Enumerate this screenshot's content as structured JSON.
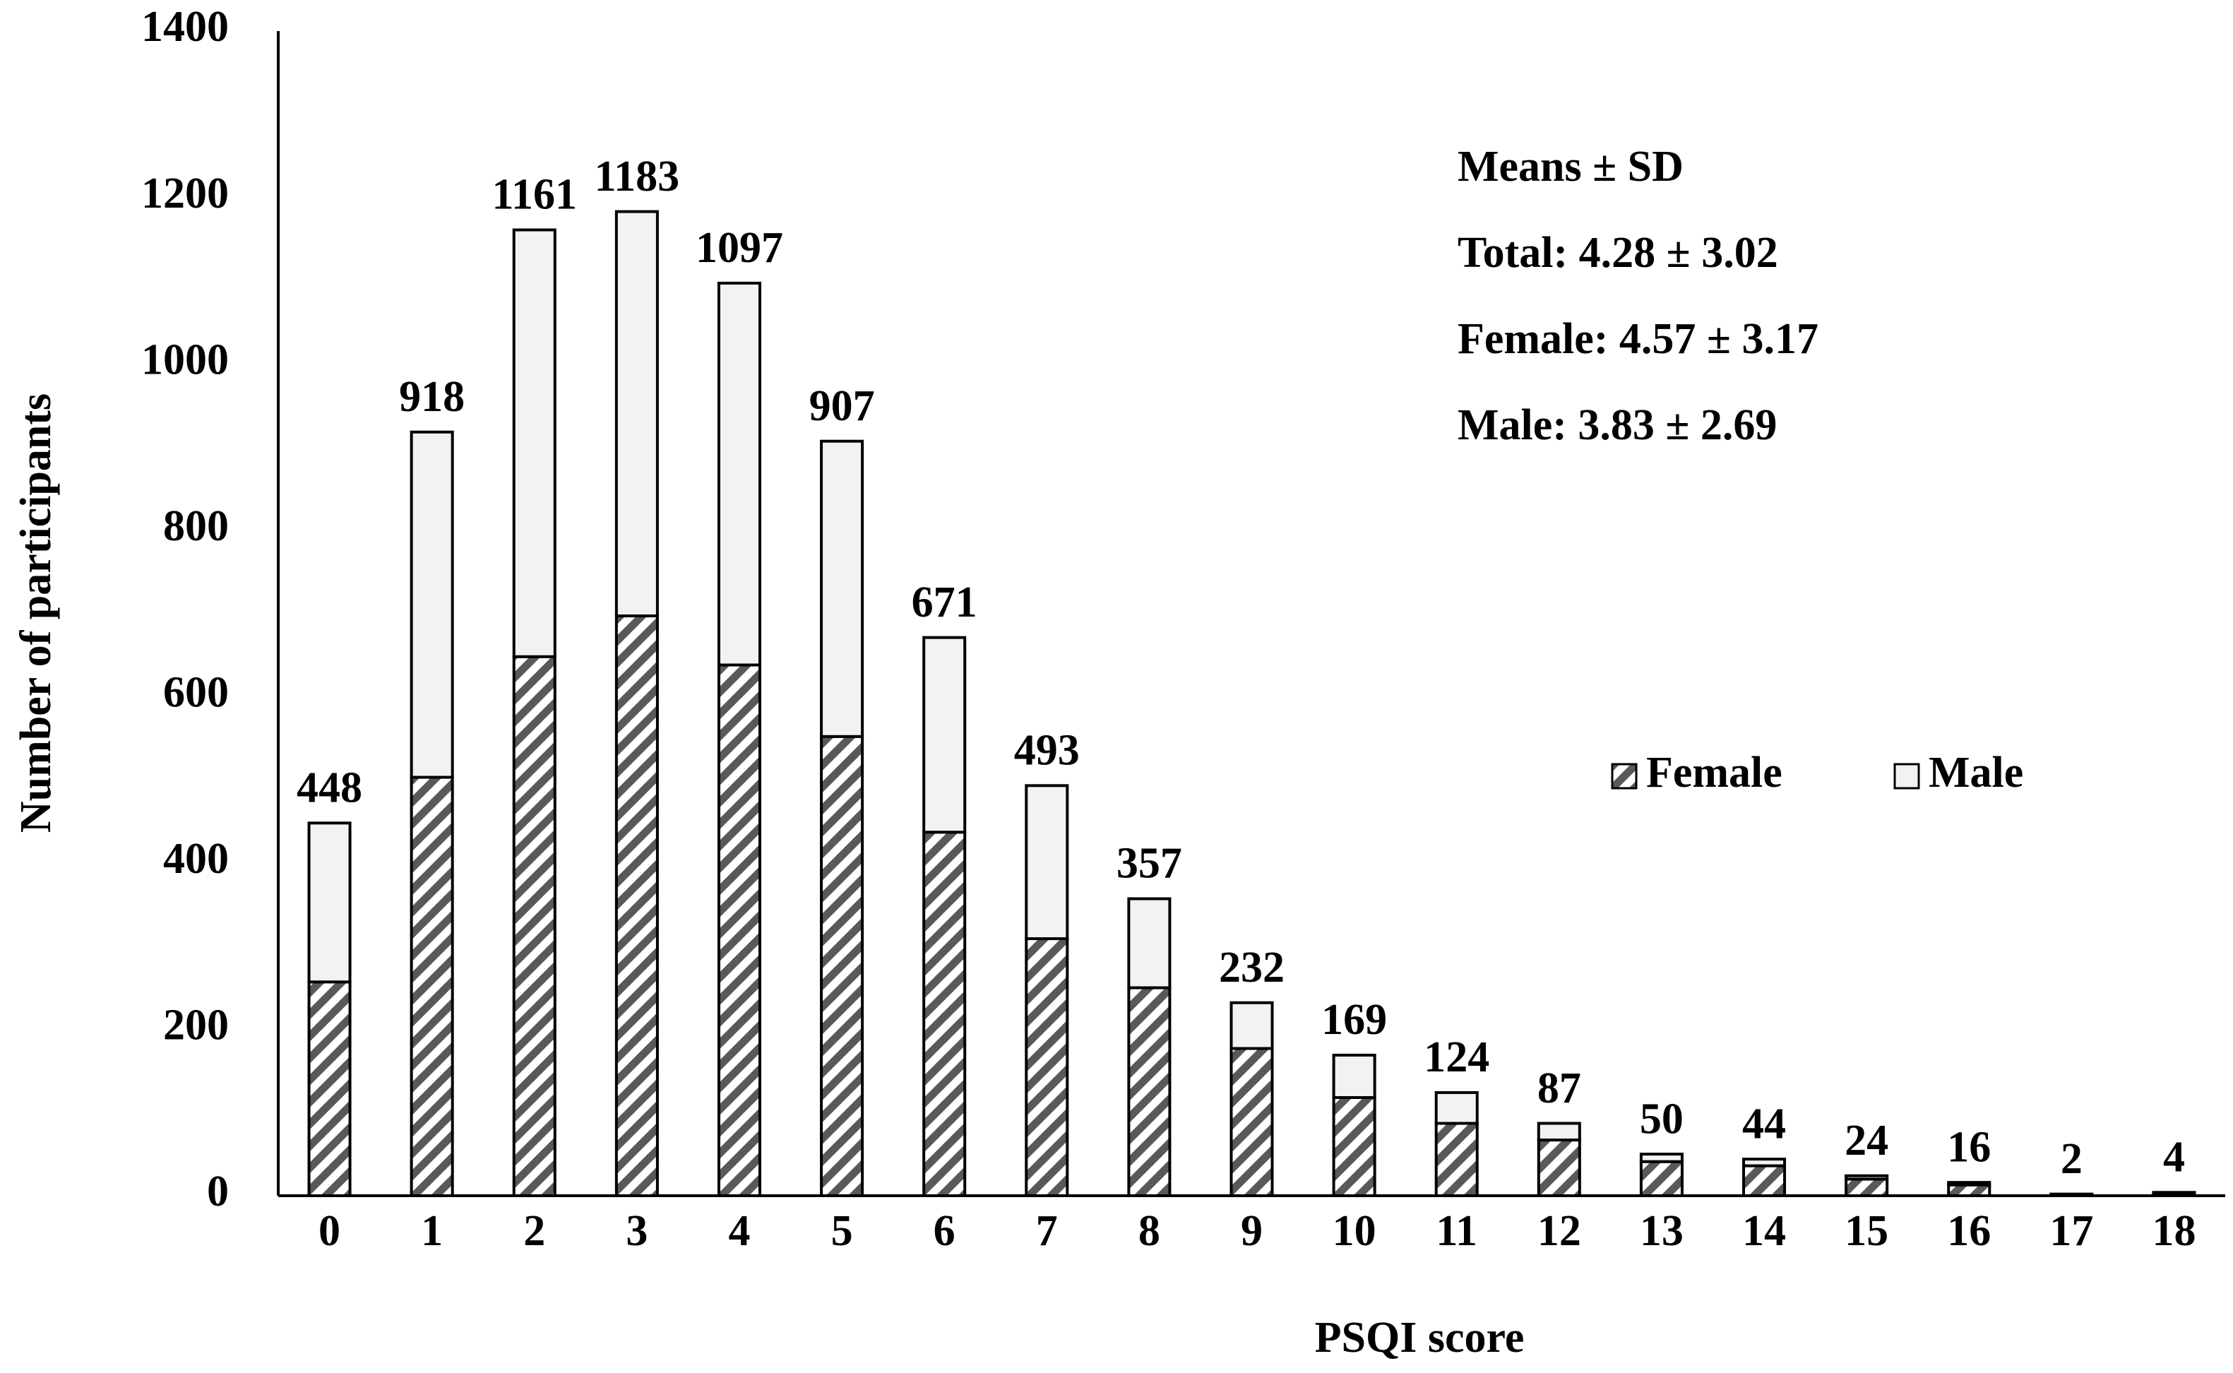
{
  "chart_data": {
    "type": "stacked_bar",
    "xlabel": "PSQI score",
    "ylabel": "Number of participants",
    "categories": [
      "0",
      "1",
      "2",
      "3",
      "4",
      "5",
      "6",
      "7",
      "8",
      "9",
      "10",
      "11",
      "12",
      "13",
      "14",
      "15",
      "16",
      "17",
      "18"
    ],
    "series": [
      {
        "name": "Female",
        "color": "#595959",
        "values": [
          257,
          503,
          648,
          697,
          638,
          552,
          437,
          309,
          250,
          177,
          118,
          87,
          67,
          41,
          36,
          20,
          13,
          2,
          3
        ]
      },
      {
        "name": "Male",
        "color": "#f2f2f2",
        "values": [
          191,
          415,
          513,
          486,
          459,
          355,
          234,
          184,
          107,
          55,
          51,
          37,
          20,
          9,
          8,
          4,
          3,
          0,
          1
        ]
      }
    ],
    "totals": [
      448,
      918,
      1161,
      1183,
      1097,
      907,
      671,
      493,
      357,
      232,
      169,
      124,
      87,
      50,
      44,
      24,
      16,
      2,
      4
    ],
    "annotations": [
      "Means ± SD",
      "Total: 4.28 ± 3.02",
      "Female: 4.57 ± 3.17",
      "Male: 3.83 ± 2.69"
    ],
    "ylim": [
      0,
      1400
    ],
    "yticks": [
      0,
      200,
      400,
      600,
      800,
      1000,
      1200,
      1400
    ],
    "grid": false,
    "legend": "right"
  }
}
